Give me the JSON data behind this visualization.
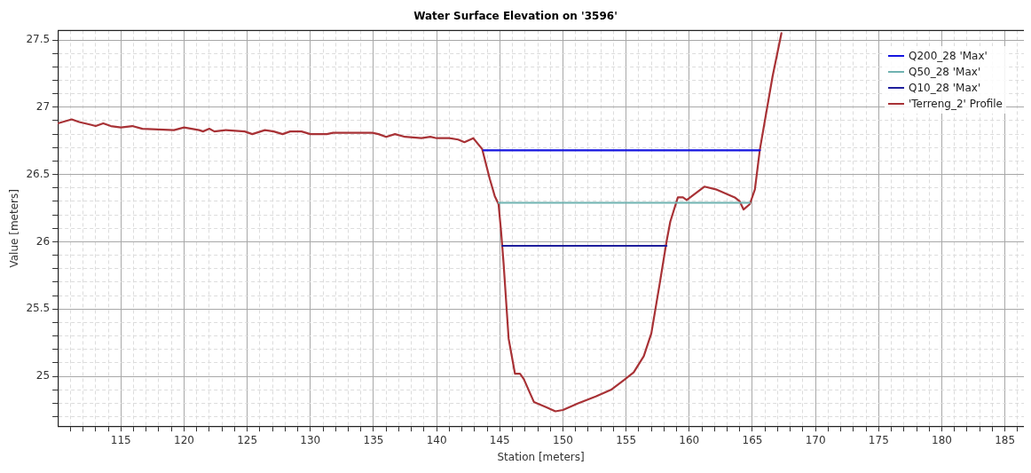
{
  "chart_data": {
    "type": "line",
    "title": "Water Surface Elevation on '3596'",
    "xlabel": "Station [meters]",
    "ylabel": "Value [meters]",
    "xlim": [
      110,
      186.5
    ],
    "ylim": [
      24.63,
      27.57
    ],
    "xticks": [
      {
        "value": 111,
        "label": null
      },
      {
        "value": 112,
        "label": null
      },
      {
        "value": 113,
        "label": null
      },
      {
        "value": 114,
        "label": null
      },
      115,
      {
        "value": 116,
        "label": null
      },
      {
        "value": 117,
        "label": null
      },
      {
        "value": 118,
        "label": null
      },
      {
        "value": 119,
        "label": null
      },
      120,
      {
        "value": 121,
        "label": null
      },
      {
        "value": 122,
        "label": null
      },
      {
        "value": 123,
        "label": null
      },
      {
        "value": 124,
        "label": null
      },
      125,
      {
        "value": 126,
        "label": null
      },
      {
        "value": 127,
        "label": null
      },
      {
        "value": 128,
        "label": null
      },
      {
        "value": 129,
        "label": null
      },
      130,
      {
        "value": 131,
        "label": null
      },
      {
        "value": 132,
        "label": null
      },
      {
        "value": 133,
        "label": null
      },
      {
        "value": 134,
        "label": null
      },
      135,
      {
        "value": 136,
        "label": null
      },
      {
        "value": 137,
        "label": null
      },
      {
        "value": 138,
        "label": null
      },
      {
        "value": 139,
        "label": null
      },
      140,
      {
        "value": 141,
        "label": null
      },
      {
        "value": 142,
        "label": null
      },
      {
        "value": 143,
        "label": null
      },
      {
        "value": 144,
        "label": null
      },
      145,
      {
        "value": 146,
        "label": null
      },
      {
        "value": 147,
        "label": null
      },
      {
        "value": 148,
        "label": null
      },
      {
        "value": 149,
        "label": null
      },
      150,
      {
        "value": 151,
        "label": null
      },
      {
        "value": 152,
        "label": null
      },
      {
        "value": 153,
        "label": null
      },
      {
        "value": 154,
        "label": null
      },
      155,
      {
        "value": 156,
        "label": null
      },
      {
        "value": 157,
        "label": null
      },
      {
        "value": 158,
        "label": null
      },
      {
        "value": 159,
        "label": null
      },
      160,
      {
        "value": 161,
        "label": null
      },
      {
        "value": 162,
        "label": null
      },
      {
        "value": 163,
        "label": null
      },
      {
        "value": 164,
        "label": null
      },
      165,
      {
        "value": 166,
        "label": null
      },
      {
        "value": 167,
        "label": null
      },
      {
        "value": 168,
        "label": null
      },
      {
        "value": 169,
        "label": null
      },
      170,
      {
        "value": 171,
        "label": null
      },
      {
        "value": 172,
        "label": null
      },
      {
        "value": 173,
        "label": null
      },
      {
        "value": 174,
        "label": null
      },
      175,
      {
        "value": 176,
        "label": null
      },
      {
        "value": 177,
        "label": null
      },
      {
        "value": 178,
        "label": null
      },
      {
        "value": 179,
        "label": null
      },
      180,
      {
        "value": 181,
        "label": null
      },
      {
        "value": 182,
        "label": null
      },
      {
        "value": 183,
        "label": null
      },
      {
        "value": 184,
        "label": null
      },
      185,
      {
        "value": 186,
        "label": null
      }
    ],
    "yticks": [
      {
        "value": 24.7,
        "label": null
      },
      {
        "value": 24.8,
        "label": null
      },
      {
        "value": 24.9,
        "label": null
      },
      25,
      {
        "value": 25.1,
        "label": null
      },
      {
        "value": 25.2,
        "label": null
      },
      {
        "value": 25.3,
        "label": null
      },
      {
        "value": 25.4,
        "label": null
      },
      25.5,
      {
        "value": 25.6,
        "label": null
      },
      {
        "value": 25.7,
        "label": null
      },
      {
        "value": 25.8,
        "label": null
      },
      {
        "value": 25.9,
        "label": null
      },
      26,
      {
        "value": 26.1,
        "label": null
      },
      {
        "value": 26.2,
        "label": null
      },
      {
        "value": 26.3,
        "label": null
      },
      {
        "value": 26.4,
        "label": null
      },
      26.5,
      {
        "value": 26.6,
        "label": null
      },
      {
        "value": 26.7,
        "label": null
      },
      {
        "value": 26.8,
        "label": null
      },
      {
        "value": 26.9,
        "label": null
      },
      27,
      {
        "value": 27.1,
        "label": null
      },
      {
        "value": 27.2,
        "label": null
      },
      {
        "value": 27.3,
        "label": null
      },
      {
        "value": 27.4,
        "label": null
      },
      27.5
    ],
    "grid": true,
    "legend": "top right",
    "marker": "none",
    "line_style": "solid",
    "series": [
      {
        "name": "Q200_28 'Max'",
        "color": "#1414e0",
        "x": [
          143.7,
          165.6
        ],
        "values": [
          26.68,
          26.68
        ]
      },
      {
        "name": "Q50_28 'Max'",
        "color": "#6fb2b0",
        "x": [
          144.9,
          164.8
        ],
        "values": [
          26.29,
          26.29
        ]
      },
      {
        "name": "Q10_28 'Max'",
        "color": "#1e1e9c",
        "x": [
          145.2,
          158.2
        ],
        "values": [
          25.97,
          25.97
        ]
      },
      {
        "name": "'Terreng_2' Profile",
        "color": "#a83236",
        "x": [
          110.0,
          111.1,
          111.7,
          112.6,
          113.0,
          113.6,
          114.2,
          115.0,
          115.9,
          116.7,
          119.2,
          120.0,
          121.2,
          121.5,
          122.0,
          122.4,
          123.3,
          124.8,
          125.4,
          126.4,
          127.1,
          127.8,
          128.4,
          129.3,
          130.0,
          131.3,
          131.8,
          134.9,
          135.4,
          136.0,
          136.7,
          137.5,
          138.8,
          139.5,
          140.0,
          141.0,
          141.7,
          142.2,
          142.9,
          143.6,
          144.2,
          144.6,
          144.9,
          145.1,
          145.3,
          145.7,
          146.2,
          146.6,
          146.9,
          147.7,
          148.7,
          149.4,
          150.0,
          151.2,
          152.6,
          153.8,
          154.8,
          155.6,
          156.4,
          157.0,
          157.7,
          158.2,
          158.5,
          159.1,
          159.5,
          159.8,
          160.5,
          161.2,
          162.1,
          163.6,
          164.0,
          164.3,
          164.8,
          165.2,
          165.6,
          166.6,
          167.3
        ],
        "values": [
          26.88,
          26.91,
          26.89,
          26.87,
          26.86,
          26.88,
          26.86,
          26.85,
          26.86,
          26.84,
          26.83,
          26.85,
          26.83,
          26.82,
          26.84,
          26.82,
          26.83,
          26.82,
          26.8,
          26.83,
          26.82,
          26.8,
          26.82,
          26.82,
          26.8,
          26.8,
          26.81,
          26.81,
          26.8,
          26.78,
          26.8,
          26.78,
          26.77,
          26.78,
          26.77,
          26.77,
          26.76,
          26.74,
          26.77,
          26.69,
          26.47,
          26.34,
          26.28,
          26.08,
          25.84,
          25.28,
          25.02,
          25.02,
          24.98,
          24.81,
          24.77,
          24.74,
          24.75,
          24.8,
          24.85,
          24.9,
          24.97,
          25.03,
          25.15,
          25.32,
          25.71,
          26.0,
          26.15,
          26.33,
          26.33,
          26.31,
          26.36,
          26.41,
          26.39,
          26.33,
          26.3,
          26.24,
          26.28,
          26.39,
          26.69,
          27.23,
          27.55
        ]
      }
    ]
  }
}
